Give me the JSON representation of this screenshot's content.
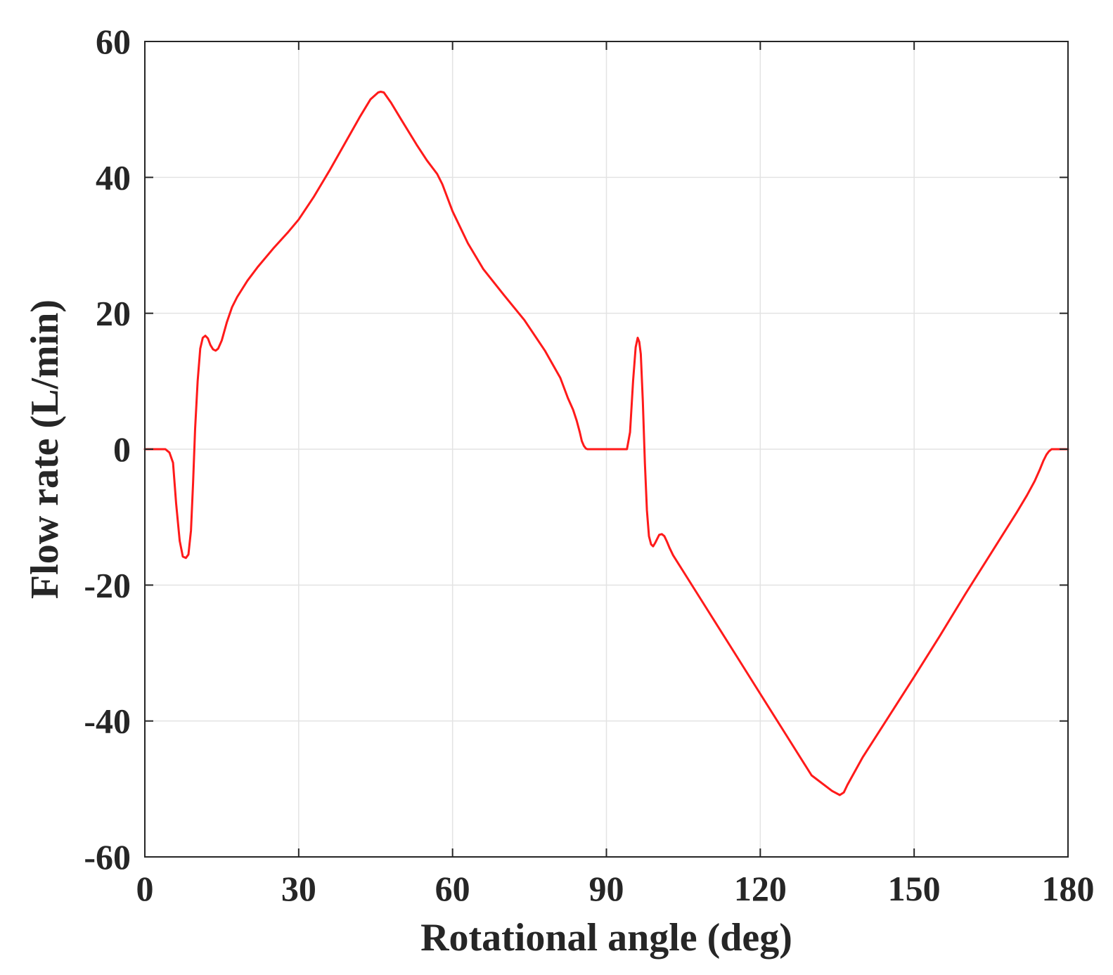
{
  "chart_data": {
    "type": "line",
    "title": "",
    "xlabel": "Rotational angle (deg)",
    "ylabel": "Flow rate (L/min)",
    "xlim": [
      0,
      180
    ],
    "ylim": [
      -60,
      60
    ],
    "xticks": [
      0,
      30,
      60,
      90,
      120,
      150,
      180
    ],
    "yticks": [
      -60,
      -40,
      -20,
      0,
      20,
      40,
      60
    ],
    "xtick_labels": [
      "0",
      "30",
      "60",
      "90",
      "120",
      "150",
      "180"
    ],
    "ytick_labels": [
      "-60",
      "-40",
      "-20",
      "0",
      "20",
      "40",
      "60"
    ],
    "grid": true,
    "box": true,
    "series": [
      {
        "color": "#ff1a1a",
        "x": [
          0,
          4,
          4.8,
          5.5,
          6.1,
          6.8,
          7.4,
          8.0,
          8.5,
          9.0,
          9.4,
          9.8,
          10.3,
          10.8,
          11.3,
          11.8,
          12.3,
          12.8,
          13.3,
          13.8,
          14.3,
          15.0,
          16.0,
          17.0,
          18.0,
          20.0,
          22.0,
          25.0,
          28.0,
          30.0,
          33.0,
          36.0,
          39.0,
          42.0,
          44.0,
          45.5,
          46.0,
          46.6,
          48.0,
          50.0,
          53.0,
          55.0,
          57.0,
          58.0,
          60.0,
          63.0,
          66.0,
          70.0,
          74.0,
          78.0,
          81.0,
          82.5,
          83.5,
          84.2,
          84.8,
          85.2,
          85.6,
          86.0,
          86.3,
          86.6,
          87.0,
          94.0,
          94.6,
          95.2,
          95.7,
          96.1,
          96.4,
          96.7,
          97.1,
          97.5,
          97.9,
          98.3,
          98.7,
          99.1,
          99.5,
          99.9,
          100.3,
          100.8,
          101.3,
          101.8,
          102.3,
          103.0,
          104.0,
          105.0,
          110.0,
          115.0,
          120.0,
          125.0,
          130.0,
          134.0,
          135.5,
          136.3,
          137.0,
          140.0,
          145.0,
          150.0,
          155.0,
          160.0,
          165.0,
          170.0,
          172.0,
          173.5,
          174.5,
          175.2,
          175.8,
          176.3,
          176.8,
          180.0
        ],
        "y": [
          0,
          0,
          -0.5,
          -2,
          -8,
          -13.5,
          -15.8,
          -16,
          -15.5,
          -12,
          -5,
          3,
          10,
          14.8,
          16.4,
          16.7,
          16.3,
          15.3,
          14.7,
          14.5,
          14.8,
          16.0,
          18.7,
          20.9,
          22.4,
          24.8,
          26.8,
          29.5,
          32.0,
          33.8,
          37.2,
          41.0,
          45.0,
          49.0,
          51.5,
          52.5,
          52.6,
          52.5,
          51.0,
          48.5,
          44.8,
          42.5,
          40.5,
          39.0,
          35.0,
          30.3,
          26.5,
          22.7,
          19.0,
          14.5,
          10.5,
          7.5,
          5.8,
          4.2,
          2.5,
          1.2,
          0.5,
          0.1,
          0,
          0,
          0,
          0,
          2.5,
          10,
          15,
          16.4,
          15.8,
          14,
          7,
          -2,
          -9,
          -12.8,
          -14,
          -14.3,
          -13.8,
          -13.2,
          -12.6,
          -12.5,
          -12.8,
          -13.6,
          -14.5,
          -15.6,
          -16.8,
          -18.0,
          -24.0,
          -30.0,
          -36.0,
          -42.0,
          -48.0,
          -50.3,
          -50.9,
          -50.5,
          -49.4,
          -45.3,
          -39.4,
          -33.5,
          -27.5,
          -21.3,
          -15.3,
          -9.3,
          -6.8,
          -4.7,
          -3.0,
          -1.7,
          -0.8,
          -0.3,
          0,
          0
        ]
      }
    ]
  }
}
